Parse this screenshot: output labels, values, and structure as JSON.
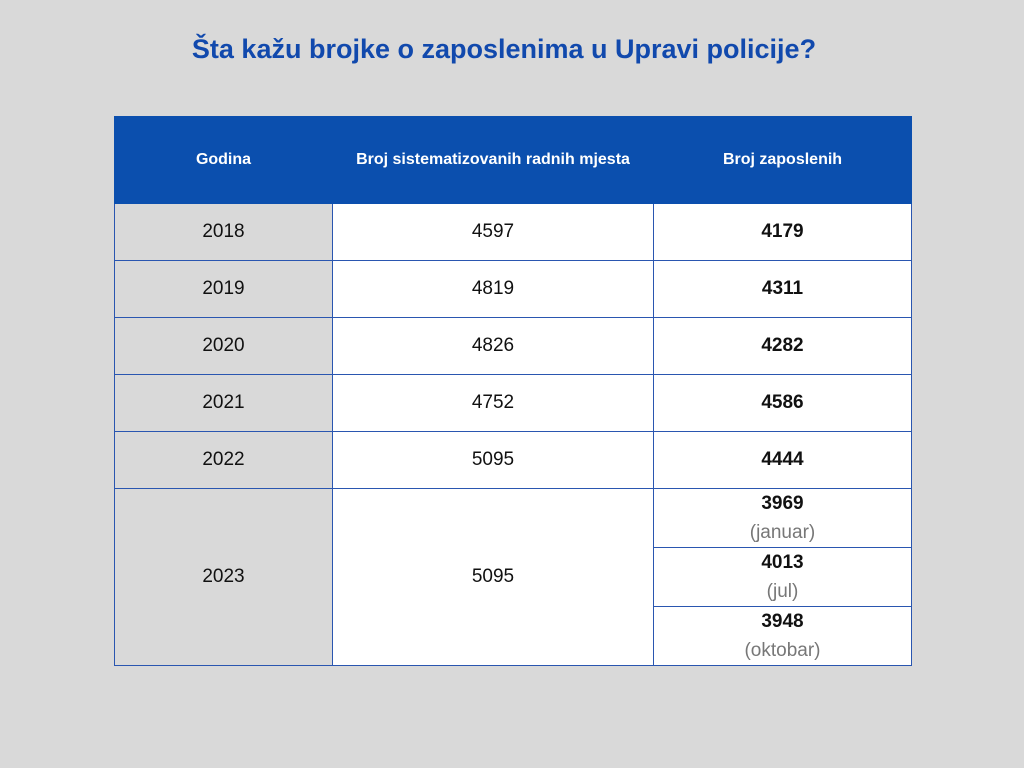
{
  "title": "Šta kažu brojke o zaposlenima u Upravi policije?",
  "chart_data": {
    "type": "table",
    "columns": [
      "Godina",
      "Broj sistematizovanih radnih mjesta",
      "Broj zaposlenih"
    ],
    "rows": [
      {
        "year": "2018",
        "systematized": "4597",
        "employed": "4179"
      },
      {
        "year": "2019",
        "systematized": "4819",
        "employed": "4311"
      },
      {
        "year": "2020",
        "systematized": "4826",
        "employed": "4282"
      },
      {
        "year": "2021",
        "systematized": "4752",
        "employed": "4586"
      },
      {
        "year": "2022",
        "systematized": "5095",
        "employed": "4444"
      }
    ],
    "row_2023": {
      "year": "2023",
      "systematized": "5095",
      "employed": [
        {
          "value": "3969",
          "month": "(januar)"
        },
        {
          "value": "4013",
          "month": "(jul)"
        },
        {
          "value": "3948",
          "month": "(oktobar)"
        }
      ]
    }
  },
  "colors": {
    "background": "#d9d9d9",
    "header": "#0b4fae",
    "title": "#1149ad",
    "border": "#2a56b0"
  }
}
